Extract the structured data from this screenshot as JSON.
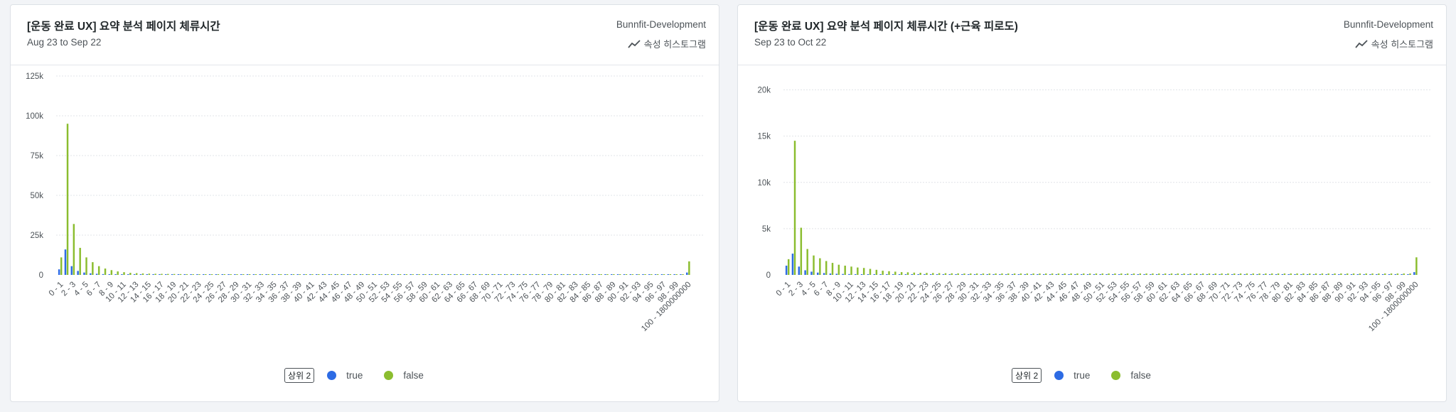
{
  "legend_badge": "상위 2",
  "series_colors": {
    "true": "#2d6be4",
    "false": "#8bbd2f"
  },
  "chart_type_label": "속성 히스토그램",
  "icon": "line-chart-icon",
  "panels": [
    {
      "title": "[운동 완료 UX] 요약 분석 페이지 체류시간",
      "date_range": "Aug 23 to Sep 22",
      "project": "Bunnfit-Development"
    },
    {
      "title": "[운동 완료 UX] 요약 분석 페이지 체류시간 (+근육 피로도)",
      "date_range": "Sep 23 to Oct 22",
      "project": "Bunnfit-Development"
    }
  ],
  "chart_data": [
    {
      "type": "bar",
      "categories": [
        "0 - 1",
        "1 - 2",
        "2 - 3",
        "3 - 4",
        "4 - 5",
        "5 - 6",
        "6 - 7",
        "7 - 8",
        "8 - 9",
        "9 - 10",
        "10 - 11",
        "11 - 12",
        "12 - 13",
        "13 - 14",
        "14 - 15",
        "15 - 16",
        "16 - 17",
        "17 - 18",
        "18 - 19",
        "19 - 20",
        "20 - 21",
        "21 - 22",
        "22 - 23",
        "23 - 24",
        "24 - 25",
        "25 - 26",
        "26 - 27",
        "27 - 28",
        "28 - 29",
        "29 - 30",
        "30 - 31",
        "31 - 32",
        "32 - 33",
        "33 - 34",
        "34 - 35",
        "35 - 36",
        "36 - 37",
        "37 - 38",
        "38 - 39",
        "39 - 40",
        "40 - 41",
        "41 - 42",
        "42 - 43",
        "43 - 44",
        "44 - 45",
        "45 - 46",
        "46 - 47",
        "47 - 48",
        "48 - 49",
        "49 - 50",
        "50 - 51",
        "51 - 52",
        "52 - 53",
        "53 - 54",
        "54 - 55",
        "55 - 56",
        "56 - 57",
        "57 - 58",
        "58 - 59",
        "59 - 60",
        "60 - 61",
        "61 - 62",
        "62 - 63",
        "63 - 64",
        "64 - 65",
        "65 - 66",
        "66 - 67",
        "67 - 68",
        "68 - 69",
        "69 - 70",
        "70 - 71",
        "71 - 72",
        "72 - 73",
        "73 - 74",
        "74 - 75",
        "75 - 76",
        "76 - 77",
        "77 - 78",
        "78 - 79",
        "79 - 80",
        "80 - 81",
        "81 - 82",
        "82 - 83",
        "83 - 84",
        "84 - 85",
        "85 - 86",
        "86 - 87",
        "87 - 88",
        "88 - 89",
        "89 - 90",
        "90 - 91",
        "91 - 92",
        "92 - 93",
        "93 - 94",
        "94 - 95",
        "95 - 96",
        "96 - 97",
        "97 - 98",
        "98 - 99",
        "99 - 100",
        "100 - 1800000000"
      ],
      "label_every": 2,
      "yticks": [
        0,
        25000,
        50000,
        75000,
        100000,
        125000
      ],
      "ytick_labels": [
        "0",
        "25k",
        "50k",
        "75k",
        "100k",
        "125k"
      ],
      "ylim": [
        0,
        125000
      ],
      "grid": true,
      "legend_position": "bottom-center",
      "series": [
        {
          "name": "true",
          "values": [
            3500,
            16000,
            5500,
            2500,
            1500,
            1000,
            700,
            500,
            400,
            300,
            250,
            200,
            200,
            150,
            150,
            150,
            150,
            100,
            100,
            100,
            100,
            100,
            100,
            100,
            100,
            100,
            100,
            100,
            100,
            100,
            100,
            100,
            100,
            100,
            100,
            100,
            100,
            100,
            100,
            100,
            100,
            100,
            100,
            100,
            100,
            100,
            100,
            100,
            100,
            100,
            100,
            100,
            100,
            100,
            100,
            100,
            100,
            100,
            100,
            100,
            100,
            100,
            100,
            100,
            100,
            100,
            100,
            100,
            100,
            100,
            100,
            100,
            100,
            100,
            100,
            100,
            100,
            100,
            100,
            100,
            100,
            100,
            100,
            100,
            100,
            100,
            100,
            100,
            100,
            100,
            100,
            100,
            100,
            100,
            100,
            100,
            100,
            100,
            100,
            100,
            1500
          ]
        },
        {
          "name": "false",
          "values": [
            11000,
            95000,
            32000,
            17000,
            11000,
            8000,
            5500,
            4000,
            3000,
            2200,
            1700,
            1300,
            1100,
            900,
            800,
            700,
            650,
            600,
            550,
            500,
            480,
            460,
            440,
            420,
            400,
            390,
            380,
            370,
            360,
            350,
            340,
            330,
            320,
            310,
            300,
            300,
            300,
            300,
            300,
            300,
            300,
            300,
            300,
            300,
            300,
            300,
            300,
            300,
            300,
            300,
            300,
            300,
            300,
            300,
            300,
            300,
            300,
            300,
            300,
            300,
            300,
            300,
            300,
            300,
            300,
            300,
            300,
            300,
            300,
            300,
            300,
            300,
            300,
            300,
            300,
            300,
            300,
            300,
            300,
            300,
            300,
            300,
            300,
            300,
            300,
            300,
            300,
            300,
            300,
            300,
            300,
            300,
            300,
            300,
            300,
            300,
            300,
            300,
            300,
            300,
            8500
          ]
        }
      ]
    },
    {
      "type": "bar",
      "categories": [
        "0 - 1",
        "1 - 2",
        "2 - 3",
        "3 - 4",
        "4 - 5",
        "5 - 6",
        "6 - 7",
        "7 - 8",
        "8 - 9",
        "9 - 10",
        "10 - 11",
        "11 - 12",
        "12 - 13",
        "13 - 14",
        "14 - 15",
        "15 - 16",
        "16 - 17",
        "17 - 18",
        "18 - 19",
        "19 - 20",
        "20 - 21",
        "21 - 22",
        "22 - 23",
        "23 - 24",
        "24 - 25",
        "25 - 26",
        "26 - 27",
        "27 - 28",
        "28 - 29",
        "29 - 30",
        "30 - 31",
        "31 - 32",
        "32 - 33",
        "33 - 34",
        "34 - 35",
        "35 - 36",
        "36 - 37",
        "37 - 38",
        "38 - 39",
        "39 - 40",
        "40 - 41",
        "41 - 42",
        "42 - 43",
        "43 - 44",
        "44 - 45",
        "45 - 46",
        "46 - 47",
        "47 - 48",
        "48 - 49",
        "49 - 50",
        "50 - 51",
        "51 - 52",
        "52 - 53",
        "53 - 54",
        "54 - 55",
        "55 - 56",
        "56 - 57",
        "57 - 58",
        "58 - 59",
        "59 - 60",
        "60 - 61",
        "61 - 62",
        "62 - 63",
        "63 - 64",
        "64 - 65",
        "65 - 66",
        "66 - 67",
        "67 - 68",
        "68 - 69",
        "69 - 70",
        "70 - 71",
        "71 - 72",
        "72 - 73",
        "73 - 74",
        "74 - 75",
        "75 - 76",
        "76 - 77",
        "77 - 78",
        "78 - 79",
        "79 - 80",
        "80 - 81",
        "81 - 82",
        "82 - 83",
        "83 - 84",
        "84 - 85",
        "85 - 86",
        "86 - 87",
        "87 - 88",
        "88 - 89",
        "89 - 90",
        "90 - 91",
        "91 - 92",
        "92 - 93",
        "93 - 94",
        "94 - 95",
        "95 - 96",
        "96 - 97",
        "97 - 98",
        "98 - 99",
        "99 - 100",
        "100 - 1800000000"
      ],
      "label_every": 2,
      "yticks": [
        0,
        5000,
        10000,
        15000,
        20000
      ],
      "ytick_labels": [
        "0",
        "5k",
        "10k",
        "15k",
        "20k"
      ],
      "ylim": [
        0,
        21500
      ],
      "grid": true,
      "legend_position": "bottom-center",
      "series": [
        {
          "name": "true",
          "values": [
            1000,
            2300,
            900,
            500,
            350,
            250,
            200,
            150,
            120,
            100,
            90,
            80,
            70,
            60,
            50,
            50,
            50,
            40,
            40,
            40,
            40,
            40,
            40,
            40,
            40,
            40,
            40,
            40,
            40,
            40,
            40,
            40,
            40,
            40,
            40,
            40,
            40,
            40,
            40,
            40,
            40,
            40,
            40,
            40,
            40,
            40,
            40,
            40,
            40,
            40,
            40,
            40,
            40,
            40,
            40,
            40,
            40,
            40,
            40,
            40,
            40,
            40,
            40,
            40,
            40,
            40,
            40,
            40,
            40,
            40,
            40,
            40,
            40,
            40,
            40,
            40,
            40,
            40,
            40,
            40,
            40,
            40,
            40,
            40,
            40,
            40,
            40,
            40,
            40,
            40,
            40,
            40,
            40,
            40,
            40,
            40,
            40,
            40,
            40,
            40,
            300
          ]
        },
        {
          "name": "false",
          "values": [
            1700,
            14500,
            5100,
            2800,
            2100,
            1800,
            1500,
            1300,
            1100,
            1000,
            900,
            800,
            750,
            650,
            550,
            450,
            400,
            350,
            300,
            280,
            250,
            230,
            210,
            200,
            190,
            180,
            170,
            160,
            150,
            150,
            150,
            150,
            150,
            150,
            150,
            150,
            150,
            150,
            150,
            150,
            150,
            150,
            150,
            150,
            150,
            150,
            150,
            150,
            150,
            150,
            150,
            150,
            150,
            150,
            150,
            150,
            150,
            150,
            150,
            150,
            150,
            150,
            150,
            150,
            150,
            150,
            150,
            150,
            150,
            150,
            150,
            150,
            150,
            150,
            150,
            150,
            150,
            150,
            150,
            150,
            150,
            150,
            150,
            150,
            150,
            150,
            150,
            150,
            150,
            150,
            150,
            150,
            150,
            150,
            150,
            150,
            150,
            150,
            150,
            150,
            1900
          ]
        }
      ]
    }
  ]
}
